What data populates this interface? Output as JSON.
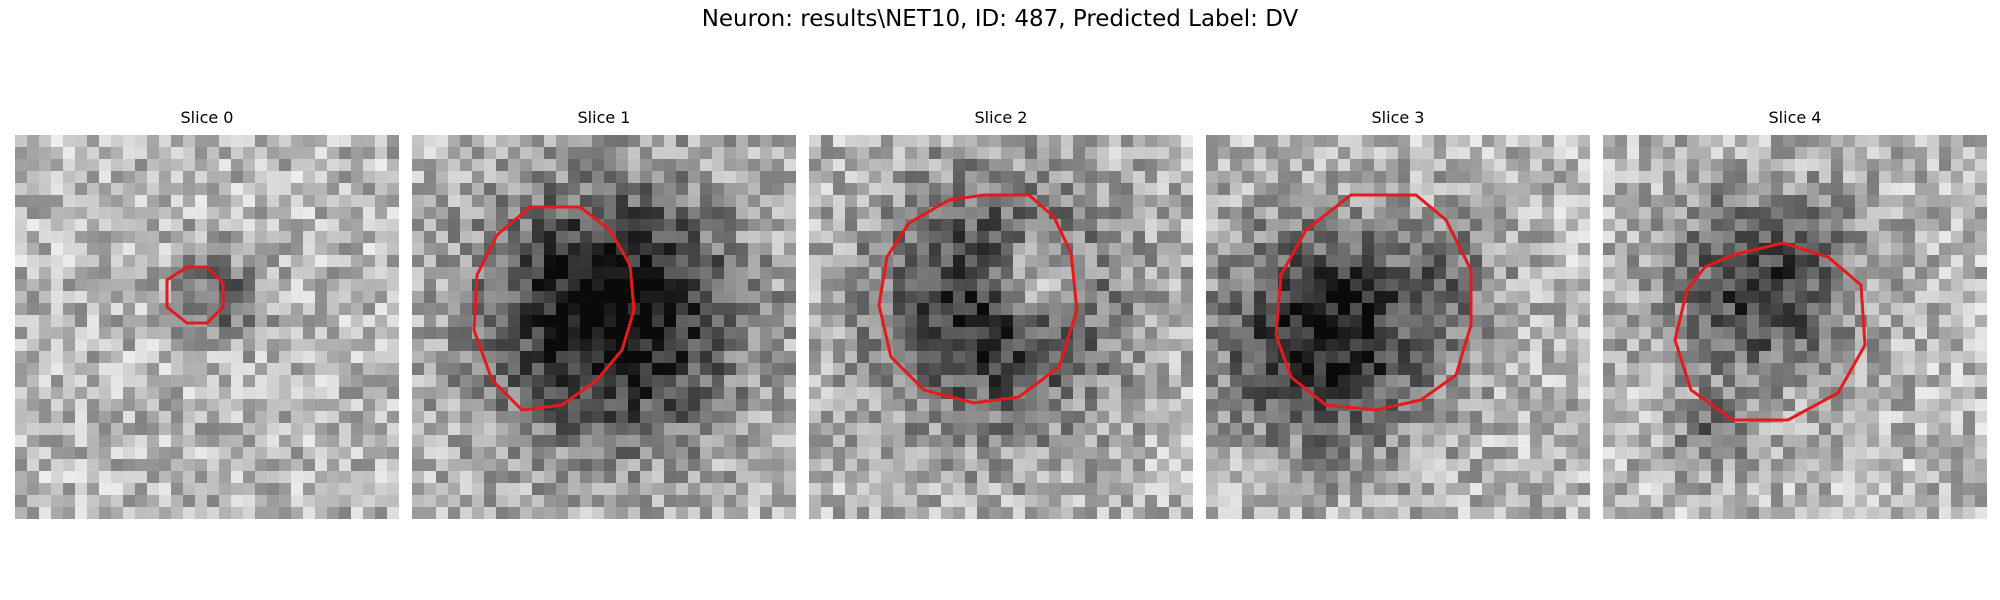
{
  "figure": {
    "title": "Neuron: results\\NET10, ID: 487, Predicted Label: DV"
  },
  "slices": [
    {
      "title": "Slice 0",
      "blob_darkness": 0.35,
      "contour_scale": 0.38
    },
    {
      "title": "Slice 1",
      "blob_darkness": 0.75,
      "contour_scale": 1.0
    },
    {
      "title": "Slice 2",
      "blob_darkness": 0.6,
      "contour_scale": 1.08
    },
    {
      "title": "Slice 3",
      "blob_darkness": 0.65,
      "contour_scale": 1.08
    },
    {
      "title": "Slice 4",
      "blob_darkness": 0.5,
      "contour_scale": 0.85
    }
  ],
  "colors": {
    "contour": "#e41a1c",
    "background": "#ffffff"
  }
}
